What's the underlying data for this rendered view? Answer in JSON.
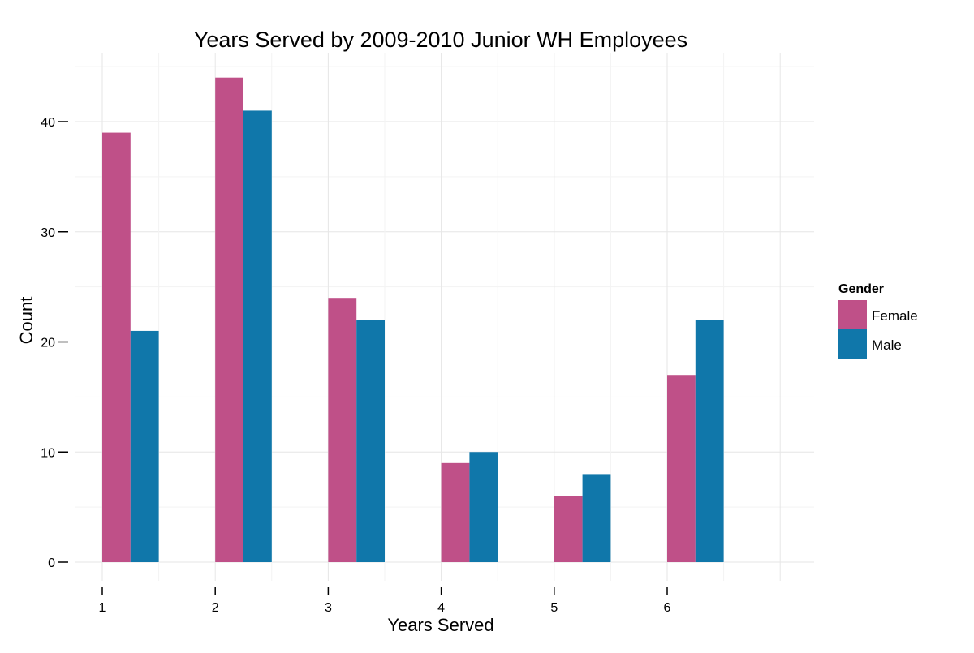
{
  "chart_data": {
    "type": "bar",
    "title": "Years Served by 2009-2010 Junior WH Employees",
    "xlabel": "Years Served",
    "ylabel": "Count",
    "categories": [
      "1",
      "2",
      "3",
      "4",
      "5",
      "6"
    ],
    "series": [
      {
        "name": "Female",
        "color": "#bf5088",
        "values": [
          39,
          44,
          24,
          9,
          6,
          17
        ]
      },
      {
        "name": "Male",
        "color": "#1077aa",
        "values": [
          21,
          41,
          22,
          10,
          8,
          22
        ]
      }
    ],
    "y_ticks": [
      0,
      10,
      20,
      30,
      40
    ],
    "ylim": [
      0,
      46
    ],
    "xlim": [
      1,
      7.3
    ],
    "grid": true,
    "legend": {
      "title": "Gender",
      "position": "right"
    }
  }
}
